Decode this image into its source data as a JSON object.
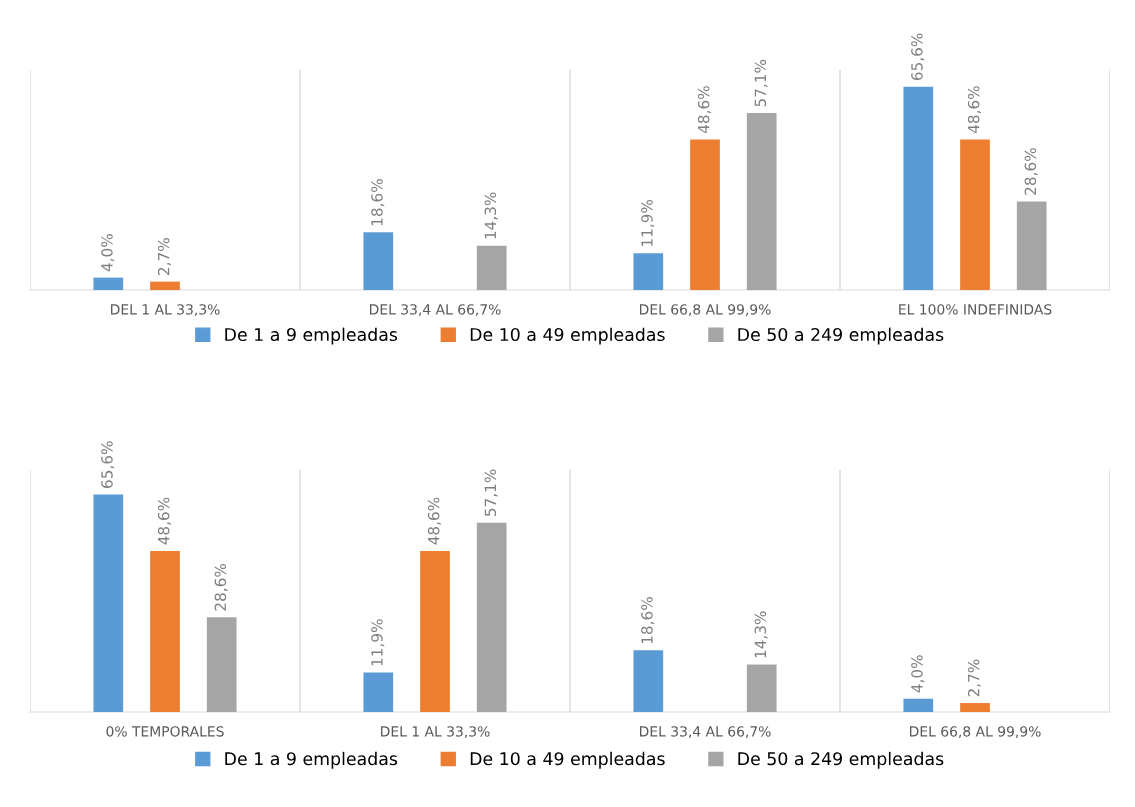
{
  "chart_data": [
    {
      "type": "bar",
      "categories": [
        "DEL 1 AL 33,3%",
        "DEL 33,4 AL 66,7%",
        "DEL 66,8 AL 99,9%",
        "EL 100% INDEFINIDAS"
      ],
      "ylim": [
        0,
        71
      ],
      "grid": "x",
      "legend": "bottom",
      "tick_labels": "x",
      "series": [
        {
          "name": "De 1 a 9 empleadas",
          "color": "#5b9bd5",
          "values": [
            4.0,
            18.6,
            11.9,
            65.6
          ],
          "value_labels": [
            "4,0%",
            "18,6%",
            "11,9%",
            "65,6%"
          ]
        },
        {
          "name": "De 10 a 49 empleadas",
          "color": "#ed7d31",
          "values": [
            2.7,
            null,
            48.6,
            48.6
          ],
          "value_labels": [
            "2,7%",
            null,
            "48,6%",
            "48,6%"
          ]
        },
        {
          "name": "De 50 a 249 empleadas",
          "color": "#a5a5a5",
          "values": [
            null,
            14.3,
            57.1,
            28.6
          ],
          "value_labels": [
            null,
            "14,3%",
            "57,1%",
            "28,6%"
          ]
        }
      ]
    },
    {
      "type": "bar",
      "categories": [
        "0% TEMPORALES",
        "DEL 1 AL 33,3%",
        "DEL 33,4 AL 66,7%",
        "DEL 66,8 AL 99,9%"
      ],
      "ylim": [
        0,
        73
      ],
      "grid": "x",
      "legend": "bottom",
      "tick_labels": "x",
      "series": [
        {
          "name": "De 1 a 9 empleadas",
          "color": "#5b9bd5",
          "values": [
            65.6,
            11.9,
            18.6,
            4.0
          ],
          "value_labels": [
            "65,6%",
            "11,9%",
            "18,6%",
            "4,0%"
          ]
        },
        {
          "name": "De 10 a 49 empleadas",
          "color": "#ed7d31",
          "values": [
            48.6,
            48.6,
            null,
            2.7
          ],
          "value_labels": [
            "48,6%",
            "48,6%",
            null,
            "2,7%"
          ]
        },
        {
          "name": "De 50 a 249 empleadas",
          "color": "#a5a5a5",
          "values": [
            28.6,
            57.1,
            14.3,
            null
          ],
          "value_labels": [
            "28,6%",
            "57,1%",
            "14,3%",
            null
          ]
        }
      ]
    }
  ]
}
